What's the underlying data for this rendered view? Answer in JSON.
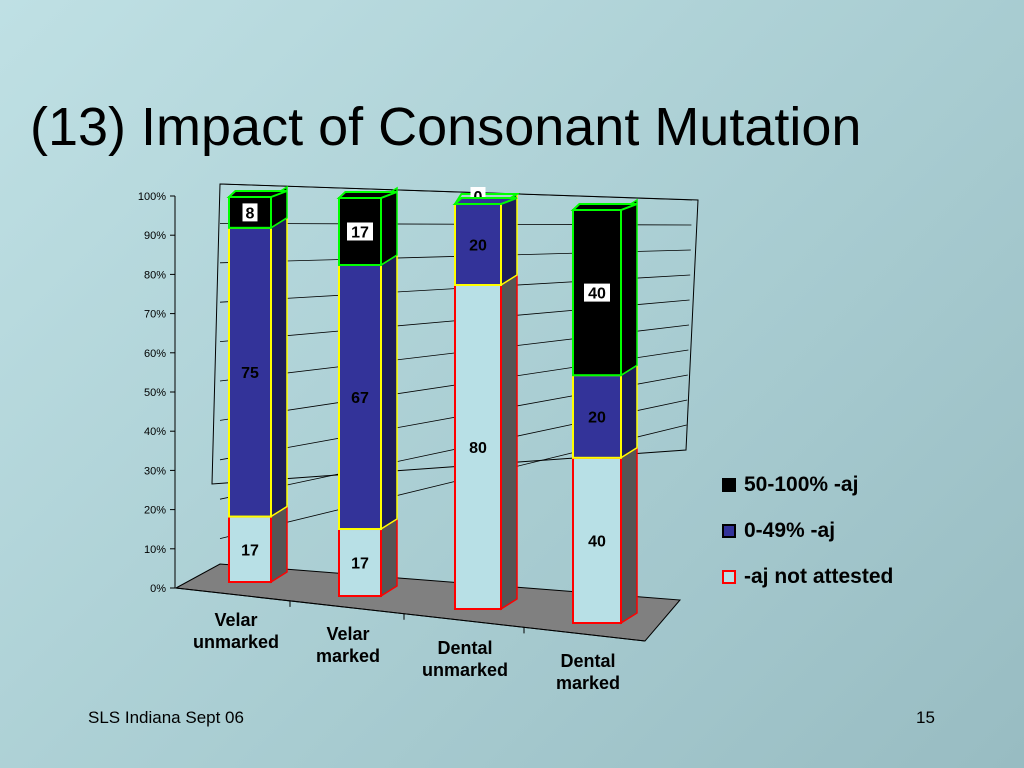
{
  "slide": {
    "title": "(13) Impact of Consonant Mutation",
    "footer_left": "SLS Indiana Sept 06",
    "page_number": "15"
  },
  "chart_data": {
    "type": "bar",
    "stacked": true,
    "three_d": true,
    "categories": [
      [
        "Velar",
        "unmarked"
      ],
      [
        "Velar",
        "marked"
      ],
      [
        "Dental",
        "unmarked"
      ],
      [
        "Dental",
        "marked"
      ]
    ],
    "series": [
      {
        "name": "-aj not attested",
        "values": [
          17,
          17,
          80,
          40
        ],
        "fill": "#b8e0e6",
        "stroke": "#ff0000",
        "label_bg": "none",
        "label_color": "#000000"
      },
      {
        "name": "0-49% -aj",
        "values": [
          75,
          67,
          20,
          20
        ],
        "fill": "#333399",
        "stroke": "#ffff00",
        "label_bg": "none",
        "label_color": "#000000"
      },
      {
        "name": "50-100% -aj",
        "values": [
          8,
          17,
          0,
          40
        ],
        "fill": "#000000",
        "stroke": "#00ff00",
        "label_bg": "#ffffff",
        "label_color": "#000000"
      }
    ],
    "y_ticks": [
      "0%",
      "10%",
      "20%",
      "30%",
      "40%",
      "50%",
      "60%",
      "70%",
      "80%",
      "90%",
      "100%"
    ],
    "ylim": [
      0,
      100
    ],
    "legend_position": "right",
    "floor_color": "#808080",
    "side_color": "#555555"
  }
}
